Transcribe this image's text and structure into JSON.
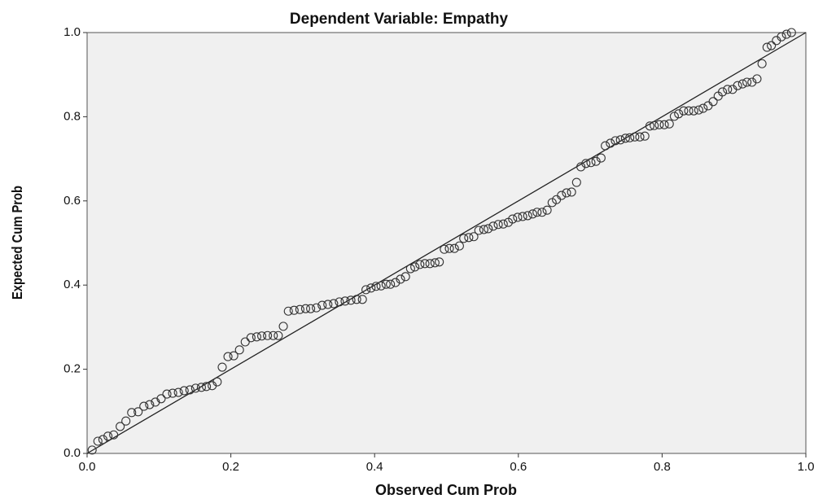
{
  "chart_data": {
    "type": "scatter",
    "title": "Dependent Variable: Empathy",
    "x_label": "Observed Cum Prob",
    "y_label": "Expected Cum Prob",
    "xlim": [
      0,
      1
    ],
    "ylim": [
      0,
      1
    ],
    "xticks": [
      {
        "value": 0,
        "label": "0.0"
      },
      0.2,
      0.4,
      0.6,
      0.8,
      {
        "value": 1,
        "label": "1.0"
      }
    ],
    "yticks": [
      {
        "value": 0,
        "label": "0.0"
      },
      0.2,
      0.4,
      0.6,
      0.8,
      {
        "value": 1,
        "label": "1.0"
      }
    ],
    "reference_line": true,
    "color": "#333333",
    "x": [
      0.007,
      0.015,
      0.022,
      0.029,
      0.037,
      0.046,
      0.054,
      0.062,
      0.071,
      0.079,
      0.087,
      0.095,
      0.103,
      0.111,
      0.119,
      0.127,
      0.135,
      0.143,
      0.151,
      0.159,
      0.166,
      0.174,
      0.181,
      0.188,
      0.196,
      0.204,
      0.212,
      0.22,
      0.228,
      0.236,
      0.243,
      0.251,
      0.259,
      0.266,
      0.273,
      0.28,
      0.288,
      0.296,
      0.304,
      0.311,
      0.319,
      0.327,
      0.335,
      0.343,
      0.351,
      0.359,
      0.367,
      0.375,
      0.383,
      0.388,
      0.395,
      0.402,
      0.409,
      0.416,
      0.422,
      0.429,
      0.436,
      0.443,
      0.45,
      0.456,
      0.463,
      0.47,
      0.477,
      0.484,
      0.49,
      0.497,
      0.504,
      0.511,
      0.518,
      0.524,
      0.531,
      0.538,
      0.545,
      0.552,
      0.558,
      0.565,
      0.572,
      0.579,
      0.586,
      0.592,
      0.599,
      0.606,
      0.613,
      0.62,
      0.626,
      0.633,
      0.64,
      0.647,
      0.653,
      0.66,
      0.667,
      0.674,
      0.681,
      0.687,
      0.694,
      0.701,
      0.708,
      0.715,
      0.721,
      0.728,
      0.735,
      0.742,
      0.749,
      0.755,
      0.762,
      0.769,
      0.776,
      0.783,
      0.789,
      0.796,
      0.803,
      0.81,
      0.817,
      0.823,
      0.83,
      0.837,
      0.844,
      0.851,
      0.857,
      0.864,
      0.871,
      0.878,
      0.884,
      0.891,
      0.898,
      0.905,
      0.912,
      0.918,
      0.925,
      0.932,
      0.939,
      0.946,
      0.952,
      0.959,
      0.966,
      0.973,
      0.98
    ],
    "values": [
      0.008,
      0.029,
      0.033,
      0.041,
      0.044,
      0.064,
      0.077,
      0.097,
      0.099,
      0.112,
      0.116,
      0.122,
      0.13,
      0.141,
      0.143,
      0.145,
      0.149,
      0.151,
      0.155,
      0.157,
      0.159,
      0.161,
      0.17,
      0.205,
      0.23,
      0.232,
      0.246,
      0.265,
      0.275,
      0.277,
      0.279,
      0.28,
      0.28,
      0.28,
      0.302,
      0.338,
      0.34,
      0.342,
      0.344,
      0.344,
      0.346,
      0.352,
      0.354,
      0.356,
      0.36,
      0.362,
      0.364,
      0.366,
      0.366,
      0.389,
      0.393,
      0.397,
      0.398,
      0.402,
      0.402,
      0.406,
      0.414,
      0.42,
      0.439,
      0.443,
      0.449,
      0.451,
      0.451,
      0.453,
      0.455,
      0.485,
      0.487,
      0.487,
      0.493,
      0.511,
      0.513,
      0.515,
      0.53,
      0.532,
      0.534,
      0.54,
      0.544,
      0.545,
      0.549,
      0.557,
      0.561,
      0.563,
      0.565,
      0.569,
      0.573,
      0.573,
      0.578,
      0.596,
      0.603,
      0.613,
      0.619,
      0.621,
      0.644,
      0.681,
      0.689,
      0.691,
      0.694,
      0.702,
      0.731,
      0.737,
      0.743,
      0.745,
      0.749,
      0.75,
      0.752,
      0.752,
      0.754,
      0.778,
      0.779,
      0.781,
      0.781,
      0.783,
      0.801,
      0.807,
      0.814,
      0.814,
      0.814,
      0.816,
      0.82,
      0.826,
      0.836,
      0.849,
      0.859,
      0.865,
      0.865,
      0.874,
      0.878,
      0.882,
      0.882,
      0.89,
      0.926,
      0.965,
      0.969,
      0.981,
      0.99,
      0.996,
      1.0
    ]
  }
}
